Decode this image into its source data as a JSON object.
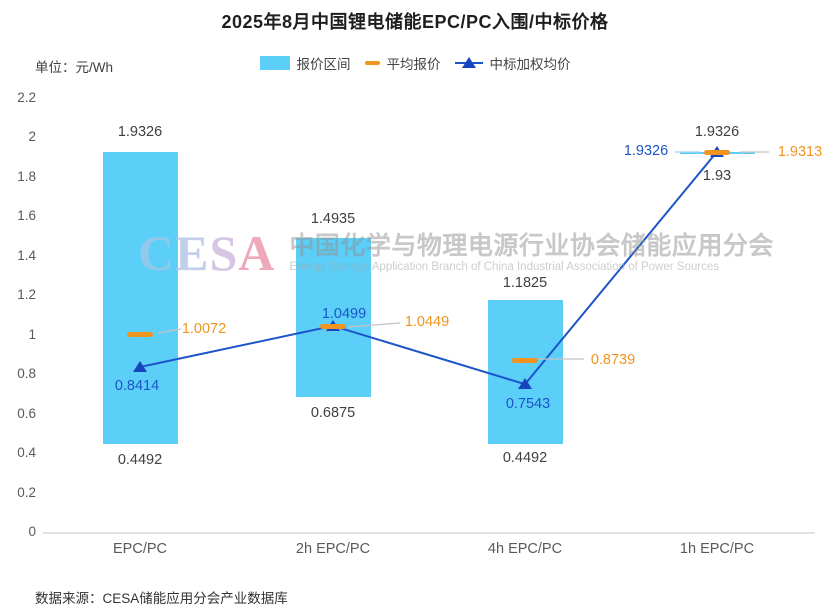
{
  "title": "2025年8月中国锂电储能EPC/PC入围/中标价格",
  "unit_label": "单位：元/Wh",
  "legend": {
    "range_label": "报价区间",
    "avg_label": "平均报价",
    "weighted_label": "中标加权均价"
  },
  "watermark": {
    "logo": "CESA",
    "cn": "中国化学与物理电源行业协会储能应用分会",
    "en": "Energy Storage Application Branch of China Industrial Association of Power Sources"
  },
  "source": "数据来源：CESA储能应用分会产业数据库",
  "colors": {
    "bar": "#5BCFF8",
    "avg": "#F0941F",
    "weighted_line": "#1C55C9",
    "weighted_triangle": "#1845BE",
    "value_label": "#404040",
    "axis_text": "#595959",
    "leader": "#C4C4C4",
    "leader_light": "#9FD4EC"
  },
  "chart_data": {
    "type": "bar",
    "subtype": "floating-range-bars-with-markers-and-line",
    "title": "2025年8月中国锂电储能EPC/PC入围/中标价格",
    "ylabel": "元/Wh",
    "ylim": [
      0,
      2.2
    ],
    "y_ticks": [
      "2.2",
      "2",
      "1.8",
      "1.6",
      "1.4",
      "1.2",
      "1",
      "0.8",
      "0.6",
      "0.4",
      "0.2",
      "0"
    ],
    "grid": false,
    "legend_position": "top",
    "categories": [
      "EPC/PC",
      "2h EPC/PC",
      "4h EPC/PC",
      "1h EPC/PC"
    ],
    "series": [
      {
        "name": "报价区间",
        "type": "range",
        "low": [
          0.4492,
          0.6875,
          0.4492,
          1.93
        ],
        "high": [
          1.9326,
          1.4935,
          1.1825,
          1.9326
        ],
        "low_labels": [
          "0.4492",
          "0.6875",
          "0.4492",
          "1.93"
        ],
        "high_labels": [
          "1.9326",
          "1.4935",
          "1.1825",
          "1.9326"
        ]
      },
      {
        "name": "平均报价",
        "type": "marker",
        "values": [
          1.0072,
          1.0449,
          0.8739,
          1.9313
        ],
        "labels": [
          "1.0072",
          "1.0449",
          "0.8739",
          "1.9313"
        ]
      },
      {
        "name": "中标加权均价",
        "type": "line",
        "values": [
          0.8414,
          1.0499,
          0.7543,
          1.9326
        ],
        "labels": [
          "0.8414",
          "1.0499",
          "0.7543",
          "1.9326"
        ]
      }
    ]
  }
}
